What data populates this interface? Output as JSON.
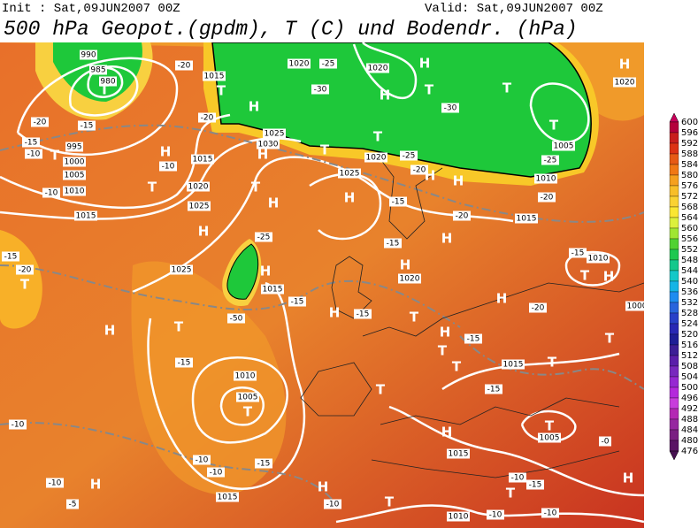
{
  "header": {
    "init": "Init : Sat,09JUN2007 00Z",
    "valid": "Valid: Sat,09JUN2007 00Z",
    "title": "500 hPa Geopot.(gpdm), T (C) und Bodendr. (hPa)"
  },
  "colorbar": {
    "levels": [
      600,
      596,
      592,
      588,
      584,
      580,
      576,
      572,
      568,
      564,
      560,
      556,
      552,
      548,
      544,
      540,
      536,
      532,
      528,
      524,
      520,
      516,
      512,
      508,
      504,
      500,
      496,
      492,
      488,
      484,
      480,
      476
    ],
    "colors": [
      "#b4003c",
      "#c81e1e",
      "#dc3214",
      "#e65a14",
      "#f07814",
      "#f5a01e",
      "#f8be28",
      "#fad232",
      "#fae632",
      "#dcf03c",
      "#a0e632",
      "#50d232",
      "#1ec850",
      "#14c88c",
      "#14c8c8",
      "#14b4e6",
      "#1e8cf0",
      "#2864dc",
      "#2840c8",
      "#2828b4",
      "#1e1e96",
      "#3c1e96",
      "#5a1eaa",
      "#7828be",
      "#9628d2",
      "#b428dc",
      "#c83cdc",
      "#b428b4",
      "#9628a0",
      "#7a1e82",
      "#5a1464"
    ]
  },
  "map_labels": [
    "990",
    "985",
    "980",
    "T",
    "995",
    "1000",
    "1005",
    "1010",
    "1015",
    "-20",
    "-15",
    "-10",
    "T",
    "-15",
    "H",
    "T",
    "-10",
    "1015",
    "T",
    "H",
    "-20",
    "-20",
    "1015",
    "1020",
    "1025",
    "H",
    "1025",
    "1030",
    "1025",
    "H",
    "T",
    "H",
    "-25",
    "H",
    "1015",
    "-50",
    "T",
    "-15",
    "H",
    "-15",
    "-20",
    "T",
    "-10",
    "1020",
    "-25",
    "-30",
    "1020",
    "H",
    "H",
    "T",
    "T",
    "-30",
    "T",
    "1005",
    "-25",
    "T",
    "T",
    "1020",
    "-25",
    "1025",
    "H",
    "-20",
    "H",
    "H",
    "-20",
    "-15",
    "H",
    "1015",
    "-15",
    "1010",
    "T",
    "H",
    "1000",
    "H",
    "1020",
    "1010",
    "-20",
    "-15",
    "H",
    "1020",
    "H",
    "-15",
    "T",
    "H",
    "-20",
    "H",
    "T",
    "T",
    "-15",
    "1015",
    "-15",
    "T",
    "T",
    "-15",
    "T",
    "H",
    "1010",
    "1005",
    "T",
    "-10",
    "-15",
    "1015",
    "-10",
    "1015",
    "-10",
    "-10",
    "-5",
    "H",
    "H",
    "-10",
    "T",
    "1005",
    "T",
    "-0",
    "H",
    "-10",
    "-15",
    "T",
    "-10",
    "1010",
    "-10"
  ]
}
